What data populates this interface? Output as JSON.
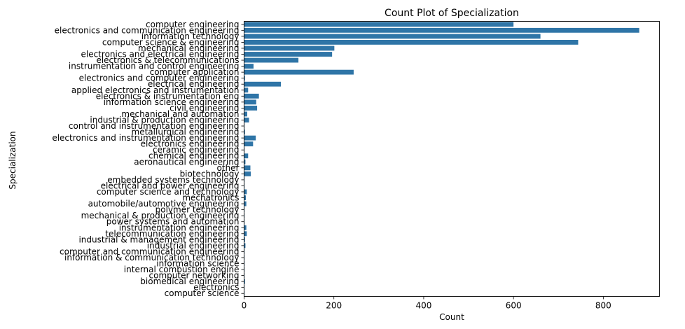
{
  "chart_data": {
    "type": "bar",
    "orientation": "horizontal",
    "title": "Count Plot of Specialization",
    "xlabel": "Count",
    "ylabel": "Specialization",
    "xlim": [
      0,
      925
    ],
    "xticks": [
      0,
      200,
      400,
      600,
      800
    ],
    "bar_color": "#2f75a7",
    "grid": false,
    "categories": [
      "computer engineering",
      "electronics and communication engineering",
      "information technology",
      "computer science & engineering",
      "mechanical engineering",
      "electronics and electrical engineering",
      "electronics & telecommunications",
      "instrumentation and control engineering",
      "computer application",
      "electronics and computer engineering",
      "electrical engineering",
      "applied electronics and instrumentation",
      "electronics & instrumentation eng",
      "information science engineering",
      "civil engineering",
      "mechanical and automation",
      "industrial & production engineering",
      "control and instrumentation engineering",
      "metallurgical engineering",
      "electronics and instrumentation engineering",
      "electronics engineering",
      "ceramic engineering",
      "chemical engineering",
      "aeronautical engineering",
      "other",
      "biotechnology",
      "embedded systems technology",
      "electrical and power engineering",
      "computer science and technology",
      "mechatronics",
      "automobile/automotive engineering",
      "polymer technology",
      "mechanical & production engineering",
      "power systems and automation",
      "instrumentation engineering",
      "telecommunication engineering",
      "industrial & management engineering",
      "industrial engineering",
      "computer and communication engineering",
      "information & communication technology",
      "information science",
      "internal combustion engine",
      "computer networking",
      "biomedical engineering",
      "electronics",
      "computer science"
    ],
    "values": [
      600,
      880,
      660,
      744,
      201,
      196,
      121,
      21,
      244,
      2,
      82,
      9,
      33,
      27,
      29,
      7,
      11,
      1,
      2,
      26,
      20,
      1,
      9,
      3,
      14,
      15,
      1,
      1,
      6,
      4,
      5,
      1,
      1,
      1,
      5,
      6,
      2,
      3,
      1,
      1,
      1,
      1,
      1,
      2,
      1,
      1
    ]
  }
}
